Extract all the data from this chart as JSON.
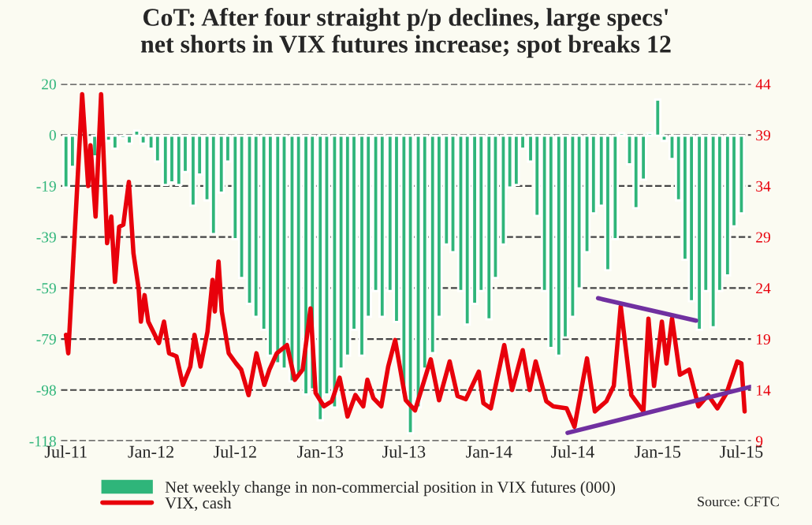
{
  "chart_data": {
    "type": "bar",
    "title": "CoT: After four straight p/p declines, large specs'\nnet shorts in VIX futures increase; spot breaks 12",
    "series": [
      {
        "name": "Net weekly change in non-commercial position in VIX futures (000)",
        "color": "#2fb57a",
        "x": [
          "2011-07-01",
          "2011-07-15",
          "2011-08-01",
          "2011-08-15",
          "2011-09-01",
          "2011-09-15",
          "2011-10-01",
          "2011-10-15",
          "2011-11-01",
          "2011-11-15",
          "2011-12-01",
          "2011-12-15",
          "2012-01-01",
          "2012-01-15",
          "2012-02-01",
          "2012-02-15",
          "2012-03-01",
          "2012-03-15",
          "2012-04-01",
          "2012-04-15",
          "2012-05-01",
          "2012-05-15",
          "2012-06-01",
          "2012-06-15",
          "2012-07-01",
          "2012-07-15",
          "2012-08-01",
          "2012-08-15",
          "2012-09-01",
          "2012-09-15",
          "2012-10-01",
          "2012-10-15",
          "2012-11-01",
          "2012-11-15",
          "2012-12-01",
          "2012-12-15",
          "2013-01-01",
          "2013-01-15",
          "2013-02-01",
          "2013-02-15",
          "2013-03-01",
          "2013-03-15",
          "2013-04-01",
          "2013-04-15",
          "2013-05-01",
          "2013-05-15",
          "2013-06-01",
          "2013-06-15",
          "2013-07-01",
          "2013-07-15",
          "2013-08-01",
          "2013-08-15",
          "2013-09-01",
          "2013-09-15",
          "2013-10-01",
          "2013-10-15",
          "2013-11-01",
          "2013-11-15",
          "2013-12-01",
          "2013-12-15",
          "2014-01-01",
          "2014-01-15",
          "2014-02-01",
          "2014-02-15",
          "2014-03-01",
          "2014-03-15",
          "2014-04-01",
          "2014-04-15",
          "2014-05-01",
          "2014-05-15",
          "2014-06-01",
          "2014-06-15",
          "2014-07-01",
          "2014-07-15",
          "2014-08-01",
          "2014-08-15",
          "2014-09-01",
          "2014-09-15",
          "2014-10-01",
          "2014-10-15",
          "2014-11-01",
          "2014-11-15",
          "2014-12-01",
          "2014-12-15",
          "2015-01-01",
          "2015-01-15",
          "2015-02-01",
          "2015-02-15",
          "2015-03-01",
          "2015-03-15",
          "2015-04-01",
          "2015-04-15",
          "2015-05-01",
          "2015-05-15",
          "2015-06-01",
          "2015-06-15",
          "2015-07-01"
        ],
        "values": [
          -20,
          -12,
          null,
          null,
          -8,
          null,
          -2,
          -5,
          -1,
          -3,
          2,
          -3,
          -5,
          -10,
          -19,
          -18,
          -19,
          -14,
          -27,
          -15,
          -25,
          -38,
          -22,
          -10,
          -40,
          -55,
          -65,
          -70,
          -75,
          -85,
          -88,
          -90,
          -95,
          -92,
          -100,
          -98,
          -110,
          -100,
          -105,
          -90,
          -85,
          -75,
          -85,
          -70,
          -60,
          -70,
          -60,
          -72,
          -100,
          -115,
          -105,
          -90,
          -84,
          -70,
          -42,
          -45,
          -60,
          -73,
          -65,
          -60,
          -71,
          -55,
          -42,
          -20,
          -19,
          -5,
          -10,
          -31,
          -60,
          -82,
          -85,
          -78,
          -70,
          -59,
          -45,
          -30,
          -27,
          -52,
          -40,
          1,
          -11,
          -28,
          -17,
          1,
          14,
          -2,
          -9,
          -25,
          -48,
          -64,
          -75,
          -60,
          -74,
          -60,
          -54,
          -35,
          -30
        ]
      },
      {
        "name": "VIX, cash",
        "type": "line",
        "axis": "y2",
        "color": "#e8000b",
        "x": [
          "2011-07-01",
          "2011-07-06",
          "2011-08-05",
          "2011-08-18",
          "2011-08-23",
          "2011-09-03",
          "2011-09-15",
          "2011-09-28",
          "2011-10-07",
          "2011-10-15",
          "2011-10-24",
          "2011-11-02",
          "2011-11-14",
          "2011-11-24",
          "2011-12-05",
          "2011-12-10",
          "2011-12-18",
          "2011-12-26",
          "2012-01-18",
          "2012-01-29",
          "2012-02-09",
          "2012-02-25",
          "2012-03-10",
          "2012-03-26",
          "2012-04-04",
          "2012-04-17",
          "2012-05-02",
          "2012-05-13",
          "2012-05-18",
          "2012-05-26",
          "2012-06-02",
          "2012-06-17",
          "2012-07-03",
          "2012-07-14",
          "2012-07-30",
          "2012-08-16",
          "2012-09-02",
          "2012-09-13",
          "2012-09-29",
          "2012-10-21",
          "2012-11-07",
          "2012-11-24",
          "2012-12-11",
          "2012-12-22",
          "2013-01-09",
          "2013-01-26",
          "2013-02-12",
          "2013-03-01",
          "2013-03-18",
          "2013-04-04",
          "2013-04-13",
          "2013-04-26",
          "2013-05-13",
          "2013-05-28",
          "2013-06-12",
          "2013-07-01",
          "2013-07-05",
          "2013-07-25",
          "2013-08-28",
          "2013-09-15",
          "2013-10-08",
          "2013-10-25",
          "2013-11-12",
          "2013-12-10",
          "2013-12-20",
          "2014-01-05",
          "2014-02-03",
          "2014-02-20",
          "2014-03-15",
          "2014-03-30",
          "2014-04-12",
          "2014-05-05",
          "2014-05-20",
          "2014-06-18",
          "2014-07-05",
          "2014-08-01",
          "2014-08-18",
          "2014-09-12",
          "2014-09-28",
          "2014-10-13",
          "2014-11-05",
          "2014-12-01",
          "2014-12-12",
          "2014-12-24",
          "2015-01-10",
          "2015-01-20",
          "2015-02-01",
          "2015-02-18",
          "2015-03-10",
          "2015-03-30",
          "2015-04-20",
          "2015-05-10",
          "2015-05-30",
          "2015-06-22",
          "2015-07-01",
          "2015-07-08"
        ],
        "values": [
          19.4,
          17.6,
          43,
          34,
          38,
          31,
          43,
          28.4,
          31,
          24.6,
          30,
          30.2,
          34.4,
          27.4,
          24,
          20.7,
          23.3,
          20.7,
          18.6,
          20.7,
          17.6,
          17.3,
          14.5,
          16.3,
          19.4,
          16.3,
          19.7,
          24.8,
          21.7,
          26.6,
          21.7,
          17.6,
          16.6,
          16,
          13.5,
          17.6,
          14.5,
          16,
          17.6,
          18.4,
          15,
          16,
          22,
          13.7,
          12.4,
          12.9,
          15.2,
          11.4,
          13.5,
          12.4,
          15,
          13.2,
          12.4,
          16.3,
          18.9,
          14,
          13,
          12,
          17,
          13,
          16.8,
          13.4,
          13.1,
          15.8,
          12.7,
          12.2,
          18.4,
          14,
          17.9,
          14,
          16.8,
          12.9,
          12.4,
          12.2,
          10.4,
          17.1,
          11.9,
          12.9,
          14.4,
          22.2,
          13.5,
          11.9,
          21,
          14.4,
          20.7,
          16.6,
          21,
          15.5,
          16,
          12.4,
          13.5,
          12.2,
          13.7,
          16.8,
          16.6,
          11.9
        ]
      },
      {
        "type": "line",
        "axis": "y2",
        "color": "#7030a0",
        "x": [
          "2014-08-25",
          "2015-03-25"
        ],
        "values": [
          23,
          20.8
        ]
      },
      {
        "type": "line",
        "axis": "y2",
        "color": "#7030a0",
        "x": [
          "2014-06-20",
          "2015-07-20"
        ],
        "values": [
          9.8,
          14.3
        ]
      }
    ],
    "xlim": [
      "2011-06-20",
      "2015-07-22"
    ],
    "xticks": [
      {
        "value": "2011-07-01",
        "label": "Jul-11"
      },
      {
        "value": "2012-01-01",
        "label": "Jan-12"
      },
      {
        "value": "2012-07-01",
        "label": "Jul-12"
      },
      {
        "value": "2013-01-01",
        "label": "Jan-13"
      },
      {
        "value": "2013-07-01",
        "label": "Jul-13"
      },
      {
        "value": "2014-01-01",
        "label": "Jan-14"
      },
      {
        "value": "2014-07-01",
        "label": "Jul-14"
      },
      {
        "value": "2015-01-01",
        "label": "Jan-15"
      },
      {
        "value": "2015-07-01",
        "label": "Jul-15"
      }
    ],
    "ylim": [
      -118,
      20
    ],
    "yticks": [
      20,
      {
        "value": 0.29,
        "label": "0"
      },
      {
        "value": -19.43,
        "label": "-19"
      },
      {
        "value": -39.14,
        "label": "-39"
      },
      {
        "value": -58.86,
        "label": "-59"
      },
      {
        "value": -78.57,
        "label": "-79"
      },
      {
        "value": -98.29,
        "label": "-98"
      },
      -118
    ],
    "y2lim": [
      9,
      44
    ],
    "y2ticks": [
      9,
      14,
      19,
      24,
      29,
      34,
      39,
      44
    ],
    "grid": "y",
    "legend": "bottom",
    "annotations": [
      "Source: CFTC"
    ]
  }
}
